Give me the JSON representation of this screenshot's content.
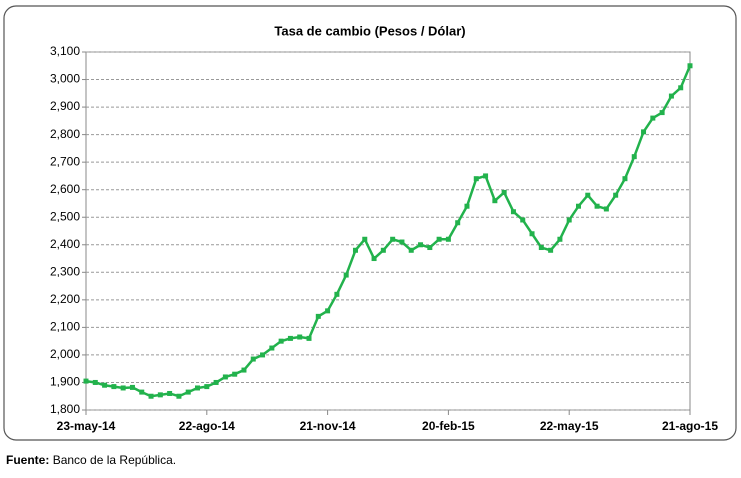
{
  "chart_data": {
    "type": "line",
    "title": "Tasa de cambio (Pesos / Dólar)",
    "source_label": "Fuente:",
    "source": "Banco de la República.",
    "x": [
      "2014-05-23",
      "2014-05-30",
      "2014-06-06",
      "2014-06-13",
      "2014-06-20",
      "2014-06-27",
      "2014-07-04",
      "2014-07-11",
      "2014-07-18",
      "2014-07-25",
      "2014-08-01",
      "2014-08-08",
      "2014-08-15",
      "2014-08-22",
      "2014-08-29",
      "2014-09-05",
      "2014-09-12",
      "2014-09-19",
      "2014-09-26",
      "2014-10-03",
      "2014-10-10",
      "2014-10-17",
      "2014-10-24",
      "2014-10-31",
      "2014-11-07",
      "2014-11-14",
      "2014-11-21",
      "2014-11-28",
      "2014-12-05",
      "2014-12-12",
      "2014-12-19",
      "2014-12-26",
      "2015-01-02",
      "2015-01-09",
      "2015-01-16",
      "2015-01-23",
      "2015-01-30",
      "2015-02-06",
      "2015-02-13",
      "2015-02-20",
      "2015-02-27",
      "2015-03-06",
      "2015-03-13",
      "2015-03-20",
      "2015-03-27",
      "2015-04-03",
      "2015-04-10",
      "2015-04-17",
      "2015-04-24",
      "2015-05-01",
      "2015-05-08",
      "2015-05-15",
      "2015-05-22",
      "2015-05-29",
      "2015-06-05",
      "2015-06-12",
      "2015-06-19",
      "2015-06-26",
      "2015-07-03",
      "2015-07-10",
      "2015-07-17",
      "2015-07-24",
      "2015-07-31",
      "2015-08-07",
      "2015-08-14",
      "2015-08-21"
    ],
    "series": [
      {
        "color": "#22b24c",
        "values": [
          1905,
          1900,
          1890,
          1885,
          1880,
          1882,
          1865,
          1850,
          1855,
          1860,
          1850,
          1865,
          1880,
          1885,
          1900,
          1920,
          1930,
          1945,
          1985,
          2000,
          2025,
          2050,
          2060,
          2065,
          2060,
          2140,
          2160,
          2220,
          2290,
          2380,
          2420,
          2350,
          2380,
          2420,
          2410,
          2380,
          2400,
          2390,
          2420,
          2420,
          2480,
          2540,
          2640,
          2650,
          2560,
          2590,
          2520,
          2490,
          2440,
          2390,
          2380,
          2420,
          2490,
          2540,
          2580,
          2540,
          2530,
          2580,
          2640,
          2720,
          2810,
          2860,
          2880,
          2940,
          2970,
          3050
        ]
      }
    ],
    "xlim": [
      "2014-05-23",
      "2015-08-21"
    ],
    "xticks": [
      {
        "value": "2014-05-23",
        "label": "23-may-14"
      },
      {
        "value": "2014-08-22",
        "label": "22-ago-14"
      },
      {
        "value": "2014-11-21",
        "label": "21-nov-14"
      },
      {
        "value": "2015-02-20",
        "label": "20-feb-15"
      },
      {
        "value": "2015-05-22",
        "label": "22-may-15"
      },
      {
        "value": "2015-08-21",
        "label": "21-ago-15"
      }
    ],
    "ylim": [
      1800,
      3100
    ],
    "yticks": [
      {
        "value": 1800,
        "label": "1,800"
      },
      {
        "value": 1900,
        "label": "1,900"
      },
      {
        "value": 2000,
        "label": "2,000"
      },
      {
        "value": 2100,
        "label": "2,100"
      },
      {
        "value": 2200,
        "label": "2,200"
      },
      {
        "value": 2300,
        "label": "2,300"
      },
      {
        "value": 2400,
        "label": "2,400"
      },
      {
        "value": 2500,
        "label": "2,500"
      },
      {
        "value": 2600,
        "label": "2,600"
      },
      {
        "value": 2700,
        "label": "2,700"
      },
      {
        "value": 2800,
        "label": "2,800"
      },
      {
        "value": 2900,
        "label": "2,900"
      },
      {
        "value": 3000,
        "label": "3,000"
      },
      {
        "value": 3100,
        "label": "3,100"
      }
    ],
    "grid": true
  }
}
